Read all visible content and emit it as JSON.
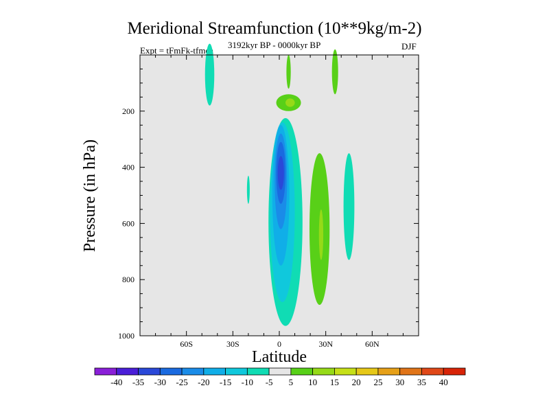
{
  "chart_data": {
    "type": "filled-contour",
    "title": "Meridional Streamfunction (10**9kg/m-2)",
    "subtitle_left": "Expt = tFmFk-tfmea",
    "subtitle_center": "3192kyr BP - 0000kyr BP",
    "subtitle_right": "DJF",
    "xlabel": "Latitude",
    "ylabel": "Pressure (in hPa)",
    "xlim": [
      -90,
      90
    ],
    "ylim": [
      0,
      1000
    ],
    "y_inverted": true,
    "x_ticks": [
      {
        "value": -60,
        "label": "60S"
      },
      {
        "value": -30,
        "label": "30S"
      },
      {
        "value": 0,
        "label": "0"
      },
      {
        "value": 30,
        "label": "30N"
      },
      {
        "value": 60,
        "label": "60N"
      }
    ],
    "y_ticks": [
      {
        "value": 200,
        "label": "200"
      },
      {
        "value": 400,
        "label": "400"
      },
      {
        "value": 600,
        "label": "600"
      },
      {
        "value": 800,
        "label": "800"
      },
      {
        "value": 1000,
        "label": "1000"
      }
    ],
    "background_color": "#e6e6e6",
    "colorbar": {
      "levels": [
        -40,
        -35,
        -30,
        -25,
        -20,
        -15,
        -10,
        -5,
        5,
        10,
        15,
        20,
        25,
        30,
        35,
        40
      ],
      "labels": [
        "-40",
        "-35",
        "-30",
        "-25",
        "-20",
        "-15",
        "-10",
        "-5",
        "5",
        "10",
        "15",
        "20",
        "25",
        "30",
        "35",
        "40"
      ],
      "colors": [
        "#8a1fd8",
        "#4a1ed8",
        "#2a48d8",
        "#1a6ae0",
        "#1a8ce8",
        "#10aee8",
        "#10c8dc",
        "#10dcb4",
        "#e6e6e6",
        "#58d018",
        "#96da18",
        "#c6e018",
        "#e6c818",
        "#e6a018",
        "#e07418",
        "#e04818",
        "#d82408"
      ]
    },
    "contours": [
      {
        "lat": -45,
        "p": 70,
        "half_width_lat": 3,
        "half_depth_p": 110,
        "value": -7
      },
      {
        "lat": -20,
        "p": 480,
        "half_width_lat": 0.9,
        "half_depth_p": 50,
        "value": -7
      },
      {
        "lat": 4,
        "p": 595,
        "half_width_lat": 11,
        "half_depth_p": 370,
        "value": -8
      },
      {
        "lat": 2,
        "p": 560,
        "half_width_lat": 8,
        "half_depth_p": 320,
        "value": -13
      },
      {
        "lat": 1,
        "p": 500,
        "half_width_lat": 5.5,
        "half_depth_p": 250,
        "value": -18
      },
      {
        "lat": 1,
        "p": 450,
        "half_width_lat": 4,
        "half_depth_p": 170,
        "value": -23
      },
      {
        "lat": 1,
        "p": 420,
        "half_width_lat": 3,
        "half_depth_p": 110,
        "value": -28
      },
      {
        "lat": 1,
        "p": 420,
        "half_width_lat": 2,
        "half_depth_p": 60,
        "value": -33
      },
      {
        "lat": 6,
        "p": 60,
        "half_width_lat": 1.4,
        "half_depth_p": 60,
        "value": 7
      },
      {
        "lat": 6,
        "p": 170,
        "half_width_lat": 8,
        "half_depth_p": 30,
        "value": 7
      },
      {
        "lat": 7,
        "p": 170,
        "half_width_lat": 3,
        "half_depth_p": 15,
        "value": 12
      },
      {
        "lat": 36,
        "p": 60,
        "half_width_lat": 2,
        "half_depth_p": 80,
        "value": 7
      },
      {
        "lat": 26,
        "p": 620,
        "half_width_lat": 6.5,
        "half_depth_p": 270,
        "value": 7
      },
      {
        "lat": 27,
        "p": 640,
        "half_width_lat": 1.4,
        "half_depth_p": 90,
        "value": 12
      },
      {
        "lat": 45,
        "p": 540,
        "half_width_lat": 3.5,
        "half_depth_p": 190,
        "value": -7
      }
    ]
  }
}
